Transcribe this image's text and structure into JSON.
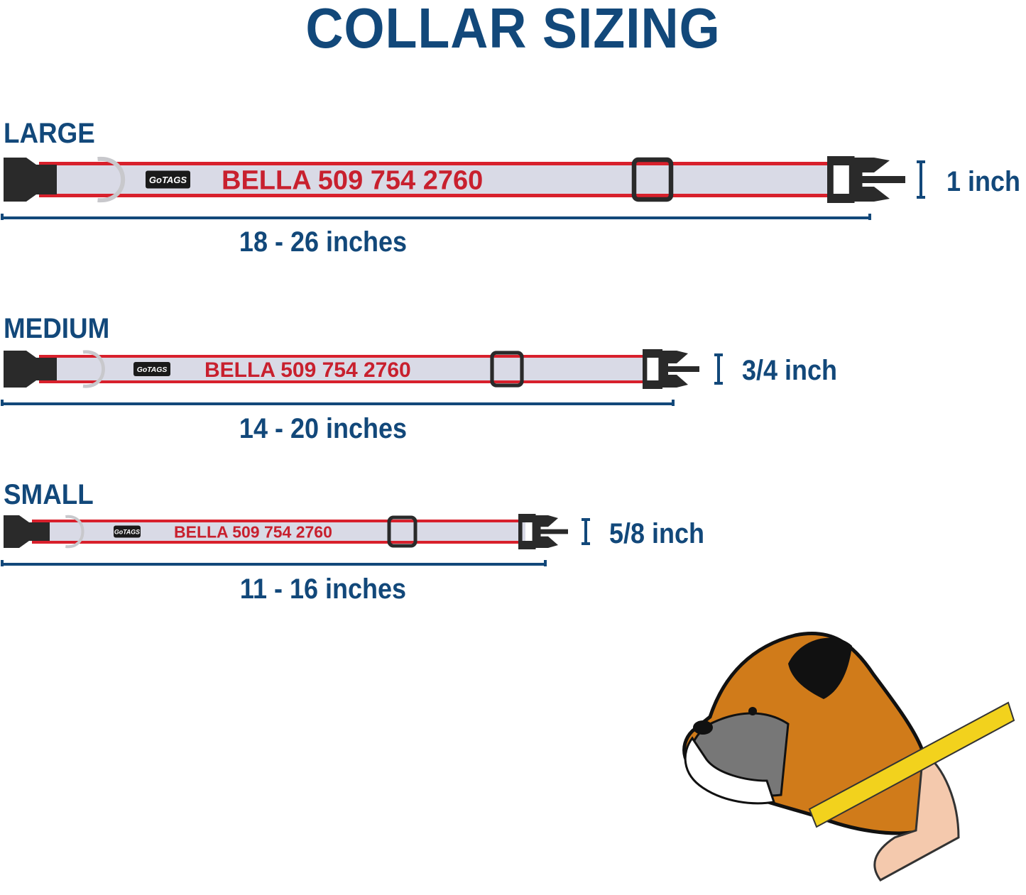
{
  "title": "COLLAR SIZING",
  "colors": {
    "heading": "#12487a",
    "band_red": "#d8202c",
    "band_fill": "#d9dae6",
    "buckle": "#2a2a2a",
    "text_red": "#c8202e"
  },
  "sizes": [
    {
      "name": "LARGE",
      "range": "18 - 26 inches",
      "width": "1 inch",
      "engraving": "BELLA 509 754 2760",
      "logo": "GoTAGS"
    },
    {
      "name": "MEDIUM",
      "range": "14 - 20 inches",
      "width": "3/4 inch",
      "engraving": "BELLA 509 754 2760",
      "logo": "GoTAGS"
    },
    {
      "name": "SMALL",
      "range": "11 - 16 inches",
      "width": "5/8 inch",
      "engraving": "BELLA 509 754 2760",
      "logo": "GoTAGS"
    }
  ],
  "illustration": {
    "subject": "boxer-dog-neck-measurement",
    "icon": "measuring-tape-icon"
  }
}
